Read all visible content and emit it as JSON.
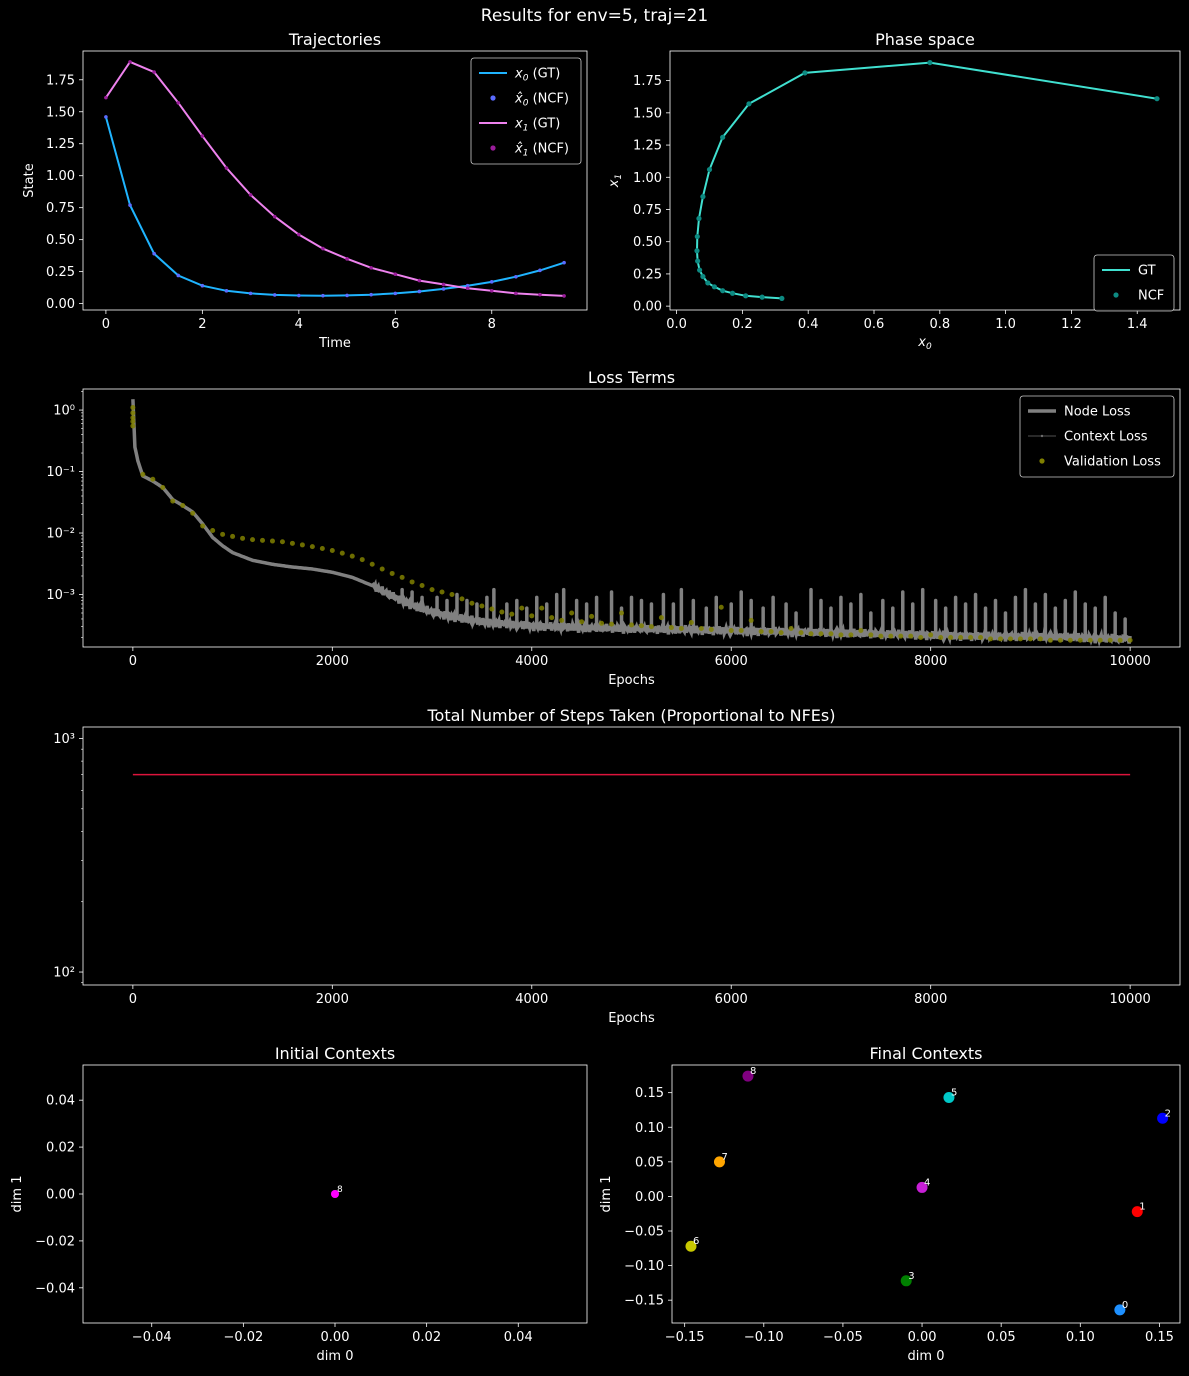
{
  "figure_title": "Results for env=5, traj=21",
  "colors": {
    "background": "#000000",
    "foreground": "#ffffff"
  },
  "chart_data": [
    {
      "id": "trajectories",
      "type": "line",
      "title": "Trajectories",
      "xlabel": "Time",
      "ylabel": "State",
      "xlim": [
        -0.475,
        9.975
      ],
      "ylim": [
        -0.05,
        1.975
      ],
      "xticks": [
        0,
        2,
        4,
        6,
        8
      ],
      "yticks": [
        0.0,
        0.25,
        0.5,
        0.75,
        1.0,
        1.25,
        1.5,
        1.75
      ],
      "x": [
        0,
        0.5,
        1,
        1.5,
        2,
        2.5,
        3,
        3.5,
        4,
        4.5,
        5,
        5.5,
        6,
        6.5,
        7,
        7.5,
        8,
        8.5,
        9,
        9.5
      ],
      "series": [
        {
          "name": "$x_0$ (GT)",
          "label_main": "x",
          "label_sub": "0",
          "label_suffix": " (GT)",
          "kind": "line",
          "color": "#1fb4ff",
          "values": [
            1.46,
            0.77,
            0.39,
            0.22,
            0.14,
            0.1,
            0.08,
            0.068,
            0.063,
            0.062,
            0.064,
            0.07,
            0.08,
            0.095,
            0.115,
            0.14,
            0.17,
            0.21,
            0.26,
            0.32
          ]
        },
        {
          "name": "$\\hat{x}_0$ (NCF)",
          "label_main": "x̂",
          "label_sub": "0",
          "label_suffix": " (NCF)",
          "kind": "dots",
          "color": "#5b6cff",
          "values": [
            1.46,
            0.77,
            0.39,
            0.22,
            0.14,
            0.1,
            0.08,
            0.068,
            0.063,
            0.062,
            0.064,
            0.07,
            0.08,
            0.095,
            0.115,
            0.14,
            0.17,
            0.21,
            0.26,
            0.32
          ]
        },
        {
          "name": "$x_1$ (GT)",
          "label_main": "x",
          "label_sub": "1",
          "label_suffix": " (GT)",
          "kind": "line",
          "color": "#ee82ee",
          "values": [
            1.61,
            1.89,
            1.81,
            1.57,
            1.31,
            1.06,
            0.85,
            0.68,
            0.54,
            0.43,
            0.35,
            0.28,
            0.23,
            0.18,
            0.15,
            0.12,
            0.1,
            0.08,
            0.07,
            0.06
          ]
        },
        {
          "name": "$\\hat{x}_1$ (NCF)",
          "label_main": "x̂",
          "label_sub": "1",
          "label_suffix": " (NCF)",
          "kind": "dots",
          "color": "#9b1d9b",
          "values": [
            1.61,
            1.89,
            1.81,
            1.57,
            1.31,
            1.06,
            0.85,
            0.68,
            0.54,
            0.43,
            0.35,
            0.28,
            0.23,
            0.18,
            0.15,
            0.12,
            0.1,
            0.08,
            0.07,
            0.06
          ]
        }
      ],
      "legend": "top-right"
    },
    {
      "id": "phase",
      "type": "line",
      "title": "Phase space",
      "xlabel": "x_0",
      "ylabel": "x_1",
      "xlim": [
        -0.02,
        1.53
      ],
      "ylim": [
        -0.03,
        1.98
      ],
      "xticks": [
        0.0,
        0.2,
        0.4,
        0.6,
        0.8,
        1.0,
        1.2,
        1.4
      ],
      "yticks": [
        0.0,
        0.25,
        0.5,
        0.75,
        1.0,
        1.25,
        1.5,
        1.75
      ],
      "x": [
        1.46,
        0.77,
        0.39,
        0.22,
        0.14,
        0.1,
        0.08,
        0.068,
        0.063,
        0.062,
        0.064,
        0.07,
        0.08,
        0.095,
        0.115,
        0.14,
        0.17,
        0.21,
        0.26,
        0.32
      ],
      "series": [
        {
          "name": "GT",
          "kind": "line",
          "color": "#40e0d0",
          "values": [
            1.61,
            1.89,
            1.81,
            1.57,
            1.31,
            1.06,
            0.85,
            0.68,
            0.54,
            0.43,
            0.35,
            0.28,
            0.23,
            0.18,
            0.15,
            0.12,
            0.1,
            0.08,
            0.07,
            0.06
          ]
        },
        {
          "name": "NCF",
          "kind": "dots",
          "color": "#0d8a82",
          "values": [
            1.61,
            1.89,
            1.81,
            1.57,
            1.31,
            1.06,
            0.85,
            0.68,
            0.54,
            0.43,
            0.35,
            0.28,
            0.23,
            0.18,
            0.15,
            0.12,
            0.1,
            0.08,
            0.07,
            0.06
          ]
        }
      ],
      "legend": "bottom-right"
    },
    {
      "id": "loss",
      "type": "line",
      "title": "Loss Terms",
      "xlabel": "Epochs",
      "ylabel": "",
      "yscale": "log",
      "xlim": [
        -500,
        10500
      ],
      "ylim": [
        0.00014,
        2.2
      ],
      "xticks": [
        0,
        2000,
        4000,
        6000,
        8000,
        10000
      ],
      "yticks": [
        0.001,
        0.01,
        0.1,
        1
      ],
      "ytick_labels": [
        "10⁻³",
        "10⁻²",
        "10⁻¹",
        "10⁰"
      ],
      "series": [
        {
          "name": "Node Loss",
          "kind": "thick-line",
          "color": "#808080",
          "x": [
            0,
            20,
            50,
            100,
            200,
            300,
            400,
            500,
            600,
            700,
            800,
            900,
            1000,
            1200,
            1400,
            1600,
            1800,
            2000,
            2200,
            2400,
            2600,
            2800,
            3000,
            3200,
            3500,
            4000,
            4500,
            5000,
            5500,
            6000,
            6500,
            7000,
            7500,
            8000,
            8500,
            9000,
            9500,
            10000
          ],
          "values": [
            1.5,
            0.25,
            0.15,
            0.085,
            0.07,
            0.055,
            0.035,
            0.028,
            0.022,
            0.014,
            0.0085,
            0.0062,
            0.0048,
            0.0036,
            0.0031,
            0.0028,
            0.0026,
            0.0023,
            0.0019,
            0.0014,
            0.00095,
            0.00068,
            0.00052,
            0.00044,
            0.00036,
            0.00031,
            0.00029,
            0.00028,
            0.00027,
            0.00026,
            0.00025,
            0.00024,
            0.00023,
            0.00022,
            0.00021,
            0.00021,
            0.0002,
            0.00019
          ],
          "spike_epochs": [
            2700,
            2800,
            2900,
            3050,
            3150,
            3250,
            3350,
            3450,
            3550,
            3620,
            3750,
            3850,
            3950,
            4050,
            4150,
            4250,
            4320,
            4450,
            4550,
            4650,
            4800,
            4900,
            5000,
            5100,
            5200,
            5320,
            5420,
            5500,
            5620,
            5750,
            5850,
            6000,
            6100,
            6200,
            6320,
            6420,
            6550,
            6650,
            6800,
            6900,
            7000,
            7100,
            7200,
            7300,
            7400,
            7520,
            7620,
            7720,
            7820,
            7920,
            8050,
            8150,
            8250,
            8350,
            8450,
            8550,
            8650,
            8750,
            8850,
            8950,
            9050,
            9150,
            9250,
            9350,
            9450,
            9550,
            9650,
            9750,
            9850,
            9950
          ],
          "spike_values": [
            0.0012,
            0.0011,
            0.0009,
            0.0009,
            0.0008,
            0.001,
            0.0008,
            0.0007,
            0.0009,
            0.0012,
            0.0007,
            0.0008,
            0.0006,
            0.0009,
            0.0007,
            0.001,
            0.0012,
            0.0008,
            0.0007,
            0.0009,
            0.0011,
            0.0006,
            0.0009,
            0.0008,
            0.0007,
            0.001,
            0.0007,
            0.0012,
            0.0008,
            0.0006,
            0.0009,
            0.0007,
            0.0011,
            0.0008,
            0.0006,
            0.0009,
            0.0007,
            0.0005,
            0.0012,
            0.0008,
            0.0006,
            0.0009,
            0.0007,
            0.001,
            0.0005,
            0.0008,
            0.0006,
            0.0011,
            0.0007,
            0.0012,
            0.0008,
            0.0006,
            0.0009,
            0.0007,
            0.001,
            0.0006,
            0.0008,
            0.0005,
            0.0009,
            0.0012,
            0.0007,
            0.001,
            0.0006,
            0.0008,
            0.0011,
            0.0007,
            0.0006,
            0.0009,
            0.0005,
            0.0004
          ]
        },
        {
          "name": "Context Loss",
          "kind": "thin-line",
          "color": "#6e6e6e",
          "values": []
        },
        {
          "name": "Validation Loss",
          "kind": "dots",
          "color": "#808000",
          "x": [
            0,
            0,
            0,
            0,
            0,
            100,
            200,
            300,
            400,
            500,
            600,
            700,
            800,
            900,
            1000,
            1100,
            1200,
            1300,
            1400,
            1500,
            1600,
            1700,
            1800,
            1900,
            2000,
            2100,
            2200,
            2300,
            2400,
            2500,
            2600,
            2700,
            2800,
            2900,
            3000,
            3100,
            3200,
            3300,
            3400,
            3500,
            3600,
            3700,
            3800,
            3900,
            4000,
            4100,
            4200,
            4300,
            4400,
            4500,
            4600,
            4700,
            4800,
            4900,
            5000,
            5100,
            5200,
            5300,
            5400,
            5500,
            5600,
            5700,
            5800,
            5900,
            6000,
            6100,
            6200,
            6300,
            6400,
            6500,
            6600,
            6700,
            6800,
            6900,
            7000,
            7100,
            7200,
            7300,
            7400,
            7500,
            7600,
            7700,
            7800,
            7900,
            8000,
            8100,
            8200,
            8300,
            8400,
            8500,
            8600,
            8700,
            8800,
            8900,
            9000,
            9100,
            9200,
            9300,
            9400,
            9500,
            9600,
            9700,
            9800,
            9900,
            10000
          ],
          "values": [
            1.1,
            0.9,
            0.75,
            0.65,
            0.55,
            0.09,
            0.075,
            0.055,
            0.033,
            0.028,
            0.021,
            0.013,
            0.011,
            0.0095,
            0.0088,
            0.0082,
            0.0078,
            0.0076,
            0.0074,
            0.0072,
            0.0068,
            0.0064,
            0.006,
            0.0056,
            0.0052,
            0.0047,
            0.0042,
            0.0037,
            0.0031,
            0.0026,
            0.0022,
            0.0019,
            0.0016,
            0.0014,
            0.0012,
            0.0011,
            0.001,
            0.00085,
            0.00072,
            0.00065,
            0.00058,
            0.00052,
            0.00048,
            0.0006,
            0.00045,
            0.0006,
            0.00042,
            0.00038,
            0.0005,
            0.00036,
            0.00044,
            0.00034,
            0.00033,
            0.0005,
            0.00032,
            0.00031,
            0.0003,
            0.00042,
            0.00029,
            0.00028,
            0.00035,
            0.00028,
            0.00027,
            0.00062,
            0.00026,
            0.00026,
            0.00038,
            0.00025,
            0.00025,
            0.00024,
            0.00028,
            0.00024,
            0.00023,
            0.00023,
            0.00023,
            0.00022,
            0.00022,
            0.00026,
            0.00022,
            0.00021,
            0.00021,
            0.00021,
            0.00021,
            0.0002,
            0.00022,
            0.0002,
            0.0002,
            0.0002,
            0.0002,
            0.0002,
            0.00019,
            0.00019,
            0.00019,
            0.00019,
            0.00019,
            0.00019,
            0.00018,
            0.00018,
            0.00018,
            0.00018,
            0.00018,
            0.00018,
            0.00018,
            0.00018,
            0.00018
          ]
        }
      ],
      "legend": "top-right"
    },
    {
      "id": "steps",
      "type": "line",
      "title": "Total Number of Steps Taken (Proportional to NFEs)",
      "xlabel": "Epochs",
      "ylabel": "",
      "yscale": "log",
      "xlim": [
        -500,
        10500
      ],
      "ylim": [
        88,
        1120
      ],
      "xticks": [
        0,
        2000,
        4000,
        6000,
        8000,
        10000
      ],
      "yticks": [
        100,
        1000
      ],
      "ytick_labels": [
        "10²",
        "10³"
      ],
      "series": [
        {
          "name": "",
          "kind": "line",
          "color": "#dc143c",
          "x": [
            0,
            10000
          ],
          "values": [
            700,
            700
          ]
        }
      ]
    },
    {
      "id": "initial",
      "type": "scatter",
      "title": "Initial Contexts",
      "xlabel": "dim 0",
      "ylabel": "dim 1",
      "xlim": [
        -0.055,
        0.055
      ],
      "ylim": [
        -0.055,
        0.055
      ],
      "xticks": [
        -0.04,
        -0.02,
        0.0,
        0.02,
        0.04
      ],
      "yticks": [
        -0.04,
        -0.02,
        0.0,
        0.02,
        0.04
      ],
      "points": [
        {
          "label": "8",
          "x": 0.0,
          "y": 0.0,
          "color": "#800080"
        },
        {
          "label": "8",
          "x": 0.0,
          "y": 0.0,
          "color": "#ff00ff"
        }
      ]
    },
    {
      "id": "final",
      "type": "scatter",
      "title": "Final Contexts",
      "xlabel": "dim 0",
      "ylabel": "dim 1",
      "xlim": [
        -0.158,
        0.163
      ],
      "ylim": [
        -0.183,
        0.19
      ],
      "xticks": [
        -0.15,
        -0.1,
        -0.05,
        0.0,
        0.05,
        0.1,
        0.15
      ],
      "yticks": [
        -0.15,
        -0.1,
        -0.05,
        0.0,
        0.05,
        0.1,
        0.15
      ],
      "points": [
        {
          "label": "0",
          "x": 0.125,
          "y": -0.164,
          "color": "#1e90ff"
        },
        {
          "label": "1",
          "x": 0.136,
          "y": -0.022,
          "color": "#ff0000"
        },
        {
          "label": "2",
          "x": 0.152,
          "y": 0.113,
          "color": "#0000ff"
        },
        {
          "label": "3",
          "x": -0.01,
          "y": -0.122,
          "color": "#008000"
        },
        {
          "label": "4",
          "x": 0.0,
          "y": 0.013,
          "color": "#c71fd6"
        },
        {
          "label": "5",
          "x": 0.017,
          "y": 0.143,
          "color": "#00c8c8"
        },
        {
          "label": "6",
          "x": -0.146,
          "y": -0.072,
          "color": "#c8c800"
        },
        {
          "label": "7",
          "x": -0.128,
          "y": 0.05,
          "color": "#ffa500"
        },
        {
          "label": "8",
          "x": -0.11,
          "y": 0.174,
          "color": "#800080"
        }
      ]
    }
  ]
}
